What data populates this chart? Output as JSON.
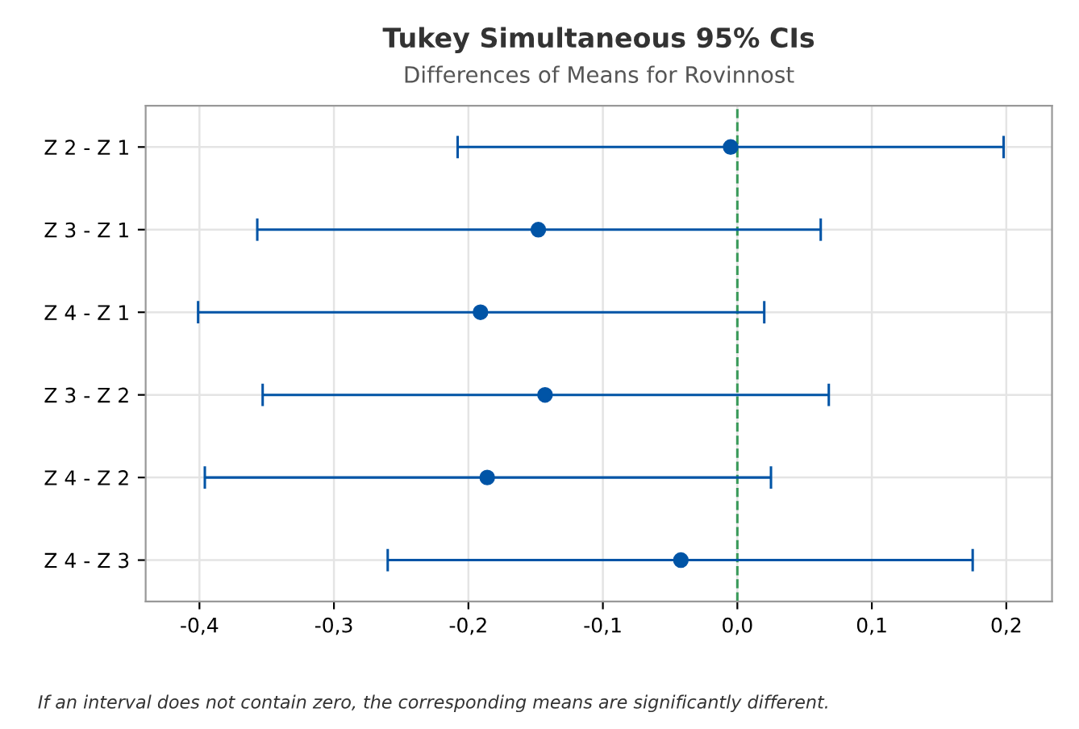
{
  "chart_data": {
    "type": "scatter",
    "orientation": "horizontal",
    "title": "Tukey Simultaneous 95% CIs",
    "subtitle": "Differences of Means for Rovinnost",
    "categories": [
      "Z 2 - Z 1",
      "Z 3 - Z 1",
      "Z 4 - Z 1",
      "Z 3 - Z 2",
      "Z 4 - Z 2",
      "Z 4 - Z 3"
    ],
    "values": [
      -0.005,
      -0.148,
      -0.191,
      -0.143,
      -0.186,
      -0.042
    ],
    "errors": [
      [
        -0.208,
        0.198
      ],
      [
        -0.357,
        0.062
      ],
      [
        -0.401,
        0.02
      ],
      [
        -0.353,
        0.068
      ],
      [
        -0.396,
        0.025
      ],
      [
        -0.26,
        0.175
      ]
    ],
    "color": "#0054a6",
    "marker": "circle",
    "xlim": [
      -0.44,
      0.234
    ],
    "xticks": [
      {
        "value": -0.4,
        "label": "-0,4"
      },
      {
        "value": -0.3,
        "label": "-0,3"
      },
      {
        "value": -0.2,
        "label": "-0,2"
      },
      {
        "value": -0.1,
        "label": "-0,1"
      },
      {
        "value": 0.0,
        "label": "0,0"
      },
      {
        "value": 0.1,
        "label": "0,1"
      },
      {
        "value": 0.2,
        "label": "0,2"
      }
    ],
    "ref_lines": [
      {
        "axis": "x",
        "value": 0,
        "color": "#3a9a5a",
        "line_style": "dashed"
      }
    ],
    "grid": true,
    "annotations": [
      "If an interval does not contain zero, the corresponding means are significantly different."
    ]
  }
}
